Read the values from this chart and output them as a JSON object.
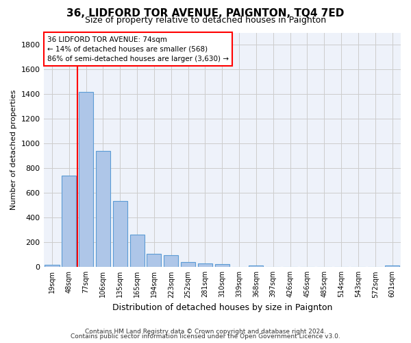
{
  "title1": "36, LIDFORD TOR AVENUE, PAIGNTON, TQ4 7ED",
  "title2": "Size of property relative to detached houses in Paignton",
  "xlabel": "Distribution of detached houses by size in Paignton",
  "ylabel": "Number of detached properties",
  "categories": [
    "19sqm",
    "48sqm",
    "77sqm",
    "106sqm",
    "135sqm",
    "165sqm",
    "194sqm",
    "223sqm",
    "252sqm",
    "281sqm",
    "310sqm",
    "339sqm",
    "368sqm",
    "397sqm",
    "426sqm",
    "456sqm",
    "485sqm",
    "514sqm",
    "543sqm",
    "572sqm",
    "601sqm"
  ],
  "values": [
    20,
    740,
    1420,
    940,
    535,
    265,
    105,
    95,
    40,
    30,
    25,
    2,
    15,
    2,
    2,
    2,
    2,
    2,
    2,
    2,
    15
  ],
  "bar_color": "#aec6e8",
  "bar_edge_color": "#5b9bd5",
  "annotation_box_text_line1": "36 LIDFORD TOR AVENUE: 74sqm",
  "annotation_box_text_line2": "← 14% of detached houses are smaller (568)",
  "annotation_box_text_line3": "86% of semi-detached houses are larger (3,630) →",
  "annotation_box_color": "white",
  "annotation_box_edge_color": "red",
  "vline_color": "red",
  "ylim": [
    0,
    1900
  ],
  "yticks": [
    0,
    200,
    400,
    600,
    800,
    1000,
    1200,
    1400,
    1600,
    1800
  ],
  "grid_color": "#cccccc",
  "bg_color": "#eef2fa",
  "footer1": "Contains HM Land Registry data © Crown copyright and database right 2024.",
  "footer2": "Contains public sector information licensed under the Open Government Licence v3.0.",
  "title_fontsize": 11,
  "subtitle_fontsize": 9,
  "bar_width": 0.85
}
